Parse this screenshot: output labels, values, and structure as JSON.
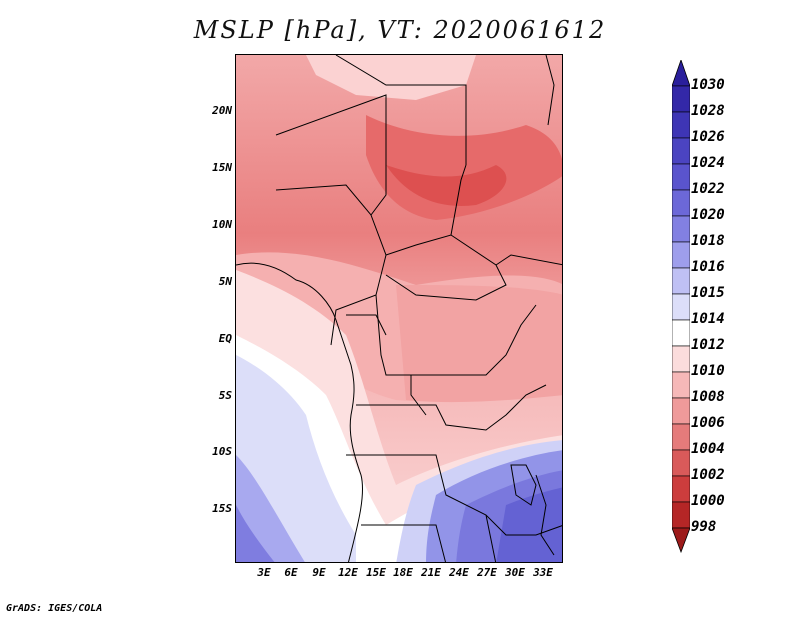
{
  "title": "MSLP [hPa], VT: 2020061612",
  "footer": "GrADS: IGES/COLA",
  "map": {
    "lon_range": [
      0,
      36
    ],
    "lat_range": [
      -20,
      25
    ],
    "y_axis_labels": [
      "20N",
      "15N",
      "10N",
      "5N",
      "EQ",
      "5S",
      "10S",
      "15S"
    ],
    "x_axis_labels": [
      "3E",
      "6E",
      "9E",
      "12E",
      "15E",
      "18E",
      "21E",
      "24E",
      "27E",
      "30E",
      "33E"
    ]
  },
  "colorbar": {
    "labels": [
      "1030",
      "1028",
      "1026",
      "1024",
      "1022",
      "1020",
      "1018",
      "1016",
      "1015",
      "1014",
      "1012",
      "1010",
      "1008",
      "1006",
      "1004",
      "1002",
      "1000",
      "998"
    ],
    "colors": [
      "#2a1f9c",
      "#3328a8",
      "#3e35b5",
      "#4b44c1",
      "#5a54cd",
      "#6c68d8",
      "#8280e2",
      "#9e9eec",
      "#bfc0f4",
      "#dcdef9",
      "#ffffff",
      "#fbdcdc",
      "#f6b8b8",
      "#ef9a9a",
      "#e57b7b",
      "#d95a5a",
      "#cc3d3d",
      "#b52626",
      "#9c1a1a"
    ]
  }
}
